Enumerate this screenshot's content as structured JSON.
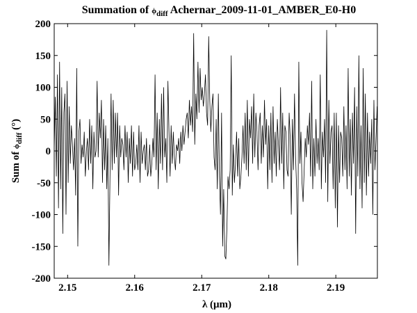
{
  "chart_data": {
    "type": "line",
    "title": {
      "prefix": "Summation of ",
      "symbol": "ϕ",
      "subscript": "diff",
      "suffix": " Achernar_2009-11-01_AMBER_E0-H0"
    },
    "xlabel": "λ (μm)",
    "ylabel": {
      "prefix": "Sum of ",
      "symbol": "ϕ",
      "subscript": "diff",
      "suffix": " (°)"
    },
    "xlim": [
      2.148,
      2.1962
    ],
    "ylim": [
      -200,
      200
    ],
    "x_ticks": [
      2.15,
      2.16,
      2.17,
      2.18,
      2.19
    ],
    "x_tick_labels": [
      "2.15",
      "2.16",
      "2.17",
      "2.18",
      "2.19"
    ],
    "y_ticks": [
      200,
      150,
      100,
      50,
      0,
      -50,
      -100,
      -150,
      -200
    ],
    "y_tick_labels": [
      "200",
      "150",
      "100",
      "50",
      "0",
      "-50",
      "-100",
      "-150",
      "-200"
    ],
    "grid": false,
    "line_color": "#000000",
    "series": [
      {
        "x_start": 2.148,
        "x_step": 0.00016,
        "values": [
          0,
          85,
          -40,
          120,
          -90,
          140,
          -60,
          100,
          -130,
          60,
          90,
          -100,
          110,
          -50,
          70,
          -20,
          40,
          10,
          -30,
          20,
          -70,
          130,
          -150,
          30,
          50,
          -20,
          10,
          -10,
          30,
          -40,
          0,
          20,
          -30,
          50,
          -20,
          40,
          -60,
          30,
          -10,
          0,
          110,
          -10,
          60,
          20,
          80,
          -50,
          50,
          -30,
          40,
          -60,
          20,
          -180,
          -40,
          90,
          -30,
          80,
          -20,
          60,
          -10,
          60,
          -70,
          40,
          -10,
          20,
          10,
          -30,
          40,
          -10,
          30,
          -50,
          20,
          -20,
          40,
          -40,
          30,
          -30,
          -20,
          10,
          -30,
          40,
          -50,
          30,
          -20,
          0,
          10,
          -30,
          20,
          -40,
          -30,
          10,
          -40,
          -20,
          20,
          -10,
          120,
          -30,
          60,
          -60,
          50,
          -20,
          90,
          -30,
          100,
          -10,
          20,
          -50,
          110,
          30,
          -40,
          40,
          -20,
          30,
          -10,
          -30,
          10,
          0,
          20,
          -20,
          30,
          0,
          40,
          10,
          30,
          50,
          60,
          20,
          80,
          40,
          70,
          30,
          185,
          10,
          90,
          50,
          140,
          60,
          130,
          80,
          100,
          70,
          90,
          120,
          60,
          40,
          180,
          80,
          30,
          70,
          90,
          -10,
          -30,
          50,
          -60,
          90,
          -40,
          -100,
          60,
          -150,
          -60,
          -165,
          -170,
          -120,
          -40,
          -60,
          -30,
          150,
          -70,
          10,
          -50,
          -20,
          30,
          -40,
          20,
          -60,
          -40,
          -10,
          40,
          -20,
          60,
          -30,
          80,
          -40,
          50,
          20,
          70,
          -20,
          90,
          -10,
          60,
          30,
          -30,
          40,
          60,
          -20,
          40,
          -10,
          80,
          10,
          50,
          -60,
          40,
          -30,
          60,
          -50,
          70,
          -20,
          30,
          -40,
          50,
          10,
          -30,
          100,
          -20,
          60,
          -60,
          40,
          30,
          -30,
          -40,
          60,
          20,
          -100,
          50,
          -30,
          90,
          -10,
          -60,
          -180,
          140,
          -20,
          30,
          -50,
          -80,
          -30,
          20,
          -10,
          40,
          10,
          60,
          -40,
          110,
          -60,
          20,
          -40,
          50,
          -20,
          20,
          -30,
          120,
          -60,
          30,
          -10,
          50,
          -50,
          190,
          -80,
          80,
          -20,
          30,
          40,
          -60,
          60,
          -90,
          60,
          -120,
          40,
          -50,
          30,
          20,
          -40,
          70,
          -30,
          40,
          -60,
          130,
          -40,
          50,
          -70,
          60,
          -20,
          100,
          -130,
          70,
          -40,
          150,
          -60,
          40,
          -90,
          130,
          -50,
          90,
          -70,
          60,
          -40,
          30,
          -20,
          50,
          -100,
          80,
          -30,
          20,
          70,
          -20,
          40
        ]
      }
    ]
  }
}
